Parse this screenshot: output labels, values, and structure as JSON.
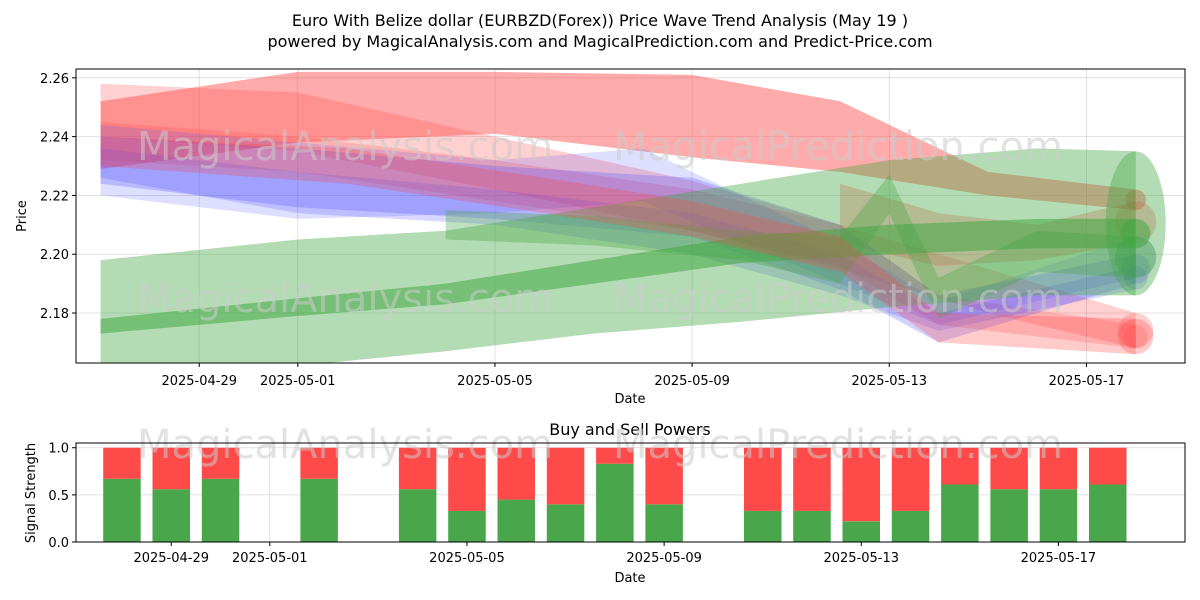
{
  "header": {
    "title": "Euro With Belize dollar (EURBZD(Forex)) Price Wave Trend Analysis (May 19 )",
    "subtitle": "powered by MagicalAnalysis.com and MagicalPrediction.com and Predict-Price.com"
  },
  "watermarks": {
    "left": "MagicalAnalysis.com",
    "right": "MagicalPrediction.com"
  },
  "colors": {
    "red": "#ff4444",
    "green": "#44a744",
    "blue": "#4a4aff",
    "buy": "#4aa64a",
    "sell": "#ff4a4a"
  },
  "chart_data": [
    {
      "type": "area",
      "xlabel": "Date",
      "ylabel": "Price",
      "x_ticks": [
        "2025-04-29",
        "2025-05-01",
        "2025-05-05",
        "2025-05-09",
        "2025-05-13",
        "2025-05-17"
      ],
      "y_ticks": [
        "2.18",
        "2.20",
        "2.22",
        "2.24",
        "2.26"
      ],
      "xlim": [
        "2025-04-26 12:00",
        "2025-05-19"
      ],
      "ylim": [
        2.163,
        2.263
      ],
      "grid": true,
      "bands": [
        {
          "color": "red",
          "opacity": 0.45,
          "x": [
            "2025-04-27",
            "2025-05-01",
            "2025-05-05",
            "2025-05-09",
            "2025-05-12",
            "2025-05-15",
            "2025-05-18"
          ],
          "upper": [
            2.252,
            2.262,
            2.262,
            2.261,
            2.252,
            2.228,
            2.222
          ],
          "lower": [
            2.229,
            2.238,
            2.241,
            2.233,
            2.228,
            2.22,
            2.215
          ]
        },
        {
          "color": "red",
          "opacity": 0.25,
          "x": [
            "2025-04-27",
            "2025-05-01",
            "2025-05-05",
            "2025-05-09",
            "2025-05-12",
            "2025-05-15",
            "2025-05-18"
          ],
          "upper": [
            2.258,
            2.255,
            2.24,
            2.225,
            2.21,
            2.195,
            2.18
          ],
          "lower": [
            2.24,
            2.235,
            2.222,
            2.208,
            2.195,
            2.18,
            2.168
          ]
        },
        {
          "color": "red",
          "opacity": 0.22,
          "x": [
            "2025-04-27",
            "2025-05-01",
            "2025-05-05",
            "2025-05-09",
            "2025-05-12",
            "2025-05-14",
            "2025-05-18"
          ],
          "upper": [
            2.245,
            2.24,
            2.232,
            2.222,
            2.21,
            2.186,
            2.176
          ],
          "lower": [
            2.232,
            2.228,
            2.218,
            2.208,
            2.196,
            2.176,
            2.168
          ]
        },
        {
          "color": "red",
          "opacity": 0.3,
          "x": [
            "2025-05-12",
            "2025-05-14",
            "2025-05-16",
            "2025-05-18"
          ],
          "upper": [
            2.224,
            2.214,
            2.21,
            2.218
          ],
          "lower": [
            2.204,
            2.196,
            2.198,
            2.204
          ]
        },
        {
          "color": "blue",
          "opacity": 0.25,
          "x": [
            "2025-04-27",
            "2025-05-01",
            "2025-05-05",
            "2025-05-09",
            "2025-05-12",
            "2025-05-14",
            "2025-05-18"
          ],
          "upper": [
            2.24,
            2.236,
            2.23,
            2.226,
            2.21,
            2.186,
            2.2
          ],
          "lower": [
            2.224,
            2.216,
            2.212,
            2.206,
            2.188,
            2.17,
            2.19
          ]
        },
        {
          "color": "blue",
          "opacity": 0.22,
          "x": [
            "2025-04-27",
            "2025-05-01",
            "2025-05-05",
            "2025-05-09",
            "2025-05-12",
            "2025-05-14",
            "2025-05-18"
          ],
          "upper": [
            2.236,
            2.228,
            2.222,
            2.214,
            2.2,
            2.18,
            2.196
          ],
          "lower": [
            2.226,
            2.214,
            2.21,
            2.2,
            2.186,
            2.174,
            2.188
          ]
        },
        {
          "color": "blue",
          "opacity": 0.18,
          "x": [
            "2025-04-27",
            "2025-05-01",
            "2025-05-05",
            "2025-05-08",
            "2025-05-12",
            "2025-05-14",
            "2025-05-18"
          ],
          "upper": [
            2.244,
            2.238,
            2.232,
            2.236,
            2.204,
            2.184,
            2.206
          ],
          "lower": [
            2.22,
            2.212,
            2.214,
            2.218,
            2.19,
            2.176,
            2.192
          ]
        },
        {
          "color": "green",
          "opacity": 0.4,
          "x": [
            "2025-04-27",
            "2025-05-01",
            "2025-05-04",
            "2025-05-07",
            "2025-05-10",
            "2025-05-13",
            "2025-05-16",
            "2025-05-18"
          ],
          "upper": [
            2.198,
            2.205,
            2.208,
            2.216,
            2.224,
            2.232,
            2.236,
            2.235
          ],
          "lower": [
            2.16,
            2.162,
            2.167,
            2.173,
            2.177,
            2.182,
            2.186,
            2.186
          ]
        },
        {
          "color": "green",
          "opacity": 0.55,
          "x": [
            "2025-04-27",
            "2025-05-01",
            "2025-05-04",
            "2025-05-07",
            "2025-05-10",
            "2025-05-13",
            "2025-05-16",
            "2025-05-18"
          ],
          "upper": [
            2.178,
            2.185,
            2.19,
            2.198,
            2.206,
            2.21,
            2.212,
            2.212
          ],
          "lower": [
            2.173,
            2.179,
            2.183,
            2.19,
            2.197,
            2.2,
            2.202,
            2.202
          ]
        },
        {
          "color": "green",
          "opacity": 0.35,
          "x": [
            "2025-05-04",
            "2025-05-07",
            "2025-05-10",
            "2025-05-12",
            "2025-05-13",
            "2025-05-14",
            "2025-05-16",
            "2025-05-18"
          ],
          "upper": [
            2.215,
            2.213,
            2.208,
            2.206,
            2.227,
            2.192,
            2.208,
            2.206
          ],
          "lower": [
            2.205,
            2.203,
            2.198,
            2.19,
            2.214,
            2.178,
            2.194,
            2.192
          ]
        },
        {
          "color": "red",
          "opacity": 0.28,
          "x": [
            "2025-04-27",
            "2025-05-02",
            "2025-05-06",
            "2025-05-09",
            "2025-05-12",
            "2025-05-14",
            "2025-05-18"
          ],
          "upper": [
            2.24,
            2.236,
            2.226,
            2.218,
            2.206,
            2.18,
            2.178
          ],
          "lower": [
            2.23,
            2.224,
            2.214,
            2.206,
            2.194,
            2.17,
            2.166
          ]
        }
      ]
    },
    {
      "type": "bar",
      "title": "Buy and Sell Powers",
      "xlabel": "Date",
      "ylabel": "Signal Strength",
      "x_ticks": [
        "2025-04-29",
        "2025-05-01",
        "2025-05-05",
        "2025-05-09",
        "2025-05-13",
        "2025-05-17"
      ],
      "y_ticks": [
        "0.0",
        "0.5",
        "1.0"
      ],
      "ylim": [
        0,
        1.05
      ],
      "categories": [
        "2025-04-28",
        "2025-04-29",
        "2025-04-30",
        "2025-05-02",
        "2025-05-04",
        "2025-05-05",
        "2025-05-06",
        "2025-05-07",
        "2025-05-08",
        "2025-05-09",
        "2025-05-11",
        "2025-05-12",
        "2025-05-13",
        "2025-05-14",
        "2025-05-15",
        "2025-05-16",
        "2025-05-17",
        "2025-05-18"
      ],
      "series": [
        {
          "key": "buy",
          "values": [
            0.67,
            0.56,
            0.67,
            0.67,
            0.56,
            0.33,
            0.45,
            0.4,
            0.83,
            0.4,
            0.33,
            0.33,
            0.22,
            0.33,
            0.61,
            0.56,
            0.56,
            0.61
          ]
        },
        {
          "key": "sell",
          "values": [
            0.33,
            0.44,
            0.33,
            0.33,
            0.44,
            0.67,
            0.55,
            0.6,
            0.17,
            0.6,
            0.67,
            0.67,
            0.78,
            0.67,
            0.39,
            0.44,
            0.44,
            0.39
          ]
        }
      ]
    }
  ]
}
